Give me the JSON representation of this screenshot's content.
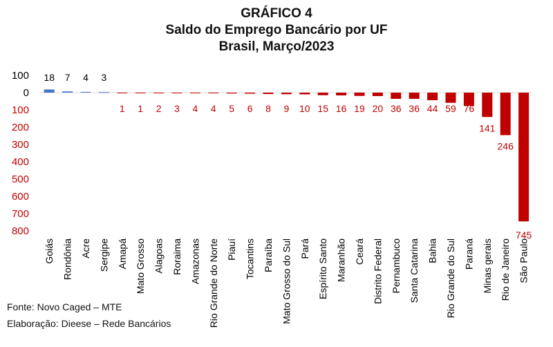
{
  "title_lines": [
    "GRÁFICO 4",
    "Saldo do Emprego Bancário por UF",
    "Brasil, Março/2023"
  ],
  "footer": {
    "source": "Fonte: Novo Caged – MTE",
    "elaboration": "Elaboração: Dieese – Rede Bancários"
  },
  "colors": {
    "positive": "#4472c4",
    "negative": "#c00000"
  },
  "chart_data": {
    "type": "bar",
    "title": "GRÁFICO 4 — Saldo do Emprego Bancário por UF — Brasil, Março/2023",
    "categories": [
      "Goiás",
      "Rondônia",
      "Acre",
      "Sergipe",
      "Amapá",
      "Mato Grosso",
      "Alagoas",
      "Roraima",
      "Amazonas",
      "Rio Grande do Norte",
      "Piauí",
      "Tocantins",
      "Paraíba",
      "Mato Grosso do Sul",
      "Pará",
      "Espírito Santo",
      "Maranhão",
      "Ceará",
      "Distrito Federal",
      "Pernambuco",
      "Santa Catarina",
      "Bahia",
      "Rio Grande do Sul",
      "Paraná",
      "Minas gerais",
      "Rio de Janeiro",
      "São Paulo"
    ],
    "values": [
      18,
      7,
      4,
      3,
      -1,
      -1,
      -2,
      -3,
      -4,
      -4,
      -5,
      -6,
      -8,
      -9,
      -10,
      -15,
      -16,
      -19,
      -20,
      -36,
      -36,
      -44,
      -59,
      -76,
      -141,
      -246,
      -745
    ],
    "data_labels": [
      "18",
      "7",
      "4",
      "3",
      "1",
      "1",
      "2",
      "3",
      "4",
      "4",
      "5",
      "6",
      "8",
      "9",
      "10",
      "15",
      "16",
      "19",
      "20",
      "36",
      "36",
      "44",
      "59",
      "76",
      "141",
      "246",
      "745"
    ],
    "y_ticks": [
      100,
      0,
      -100,
      -200,
      -300,
      -400,
      -500,
      -600,
      -700,
      -800
    ],
    "y_tick_labels": [
      "100",
      "0",
      "100",
      "200",
      "300",
      "400",
      "500",
      "600",
      "700",
      "800"
    ],
    "ylim": [
      -800,
      100
    ],
    "xlabel": "",
    "ylabel": "",
    "grid": false,
    "legend": "none"
  }
}
